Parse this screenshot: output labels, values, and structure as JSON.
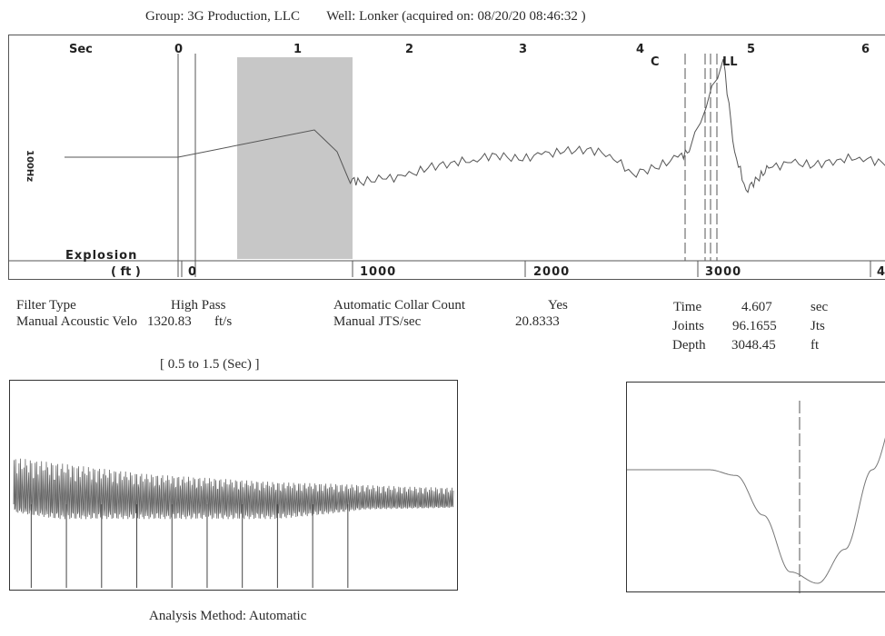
{
  "header": {
    "group_label": "Group:",
    "group_value": "3G Production, LLC",
    "well_label": "Well:",
    "well_value": "Lonker (acquired on: 08/20/20 08:46:32 )"
  },
  "main_plot": {
    "time_axis_label": "Sec",
    "time_ticks": [
      "0",
      "1",
      "2",
      "3",
      "4",
      "5",
      "6"
    ],
    "marker_labels": [
      "C",
      "LL"
    ],
    "left_label": "100Hz",
    "explosion_label": "Explosion",
    "depth_axis_label": "( ft )",
    "depth_ticks": [
      "0",
      "1000",
      "2000",
      "3000",
      "4"
    ]
  },
  "params": {
    "filter_type_label": "Filter Type",
    "filter_type_value": "High Pass",
    "velocity_label": "Manual Acoustic Velo",
    "velocity_value": "1320.83",
    "velocity_unit": "ft/s",
    "collar_count_label": "Automatic Collar Count",
    "collar_count_value": "Yes",
    "jts_label": "Manual JTS/sec",
    "jts_value": "20.8333"
  },
  "results": {
    "time_label": "Time",
    "time_value": "4.607",
    "time_unit": "sec",
    "joints_label": "Joints",
    "joints_value": "96.1655",
    "joints_unit": "Jts",
    "depth_label": "Depth",
    "depth_value": "3048.45",
    "depth_unit": "ft"
  },
  "window_label": "[ 0.5  to  1.5 (Sec) ]",
  "footer": {
    "method_label": "Analysis Method:",
    "method_value": "Automatic"
  },
  "colors": {
    "trace": "#555555",
    "shade": "#c8c8c8",
    "frame": "#333333"
  },
  "chart_data": [
    {
      "type": "line",
      "title": "",
      "xlabel": "Sec",
      "xlim": [
        -1.6,
        6.4
      ],
      "x_ticks": [
        0,
        1,
        2,
        3,
        4,
        5,
        6
      ],
      "secondary_axis": {
        "label": "( ft )",
        "ticks": [
          0,
          1000,
          2000,
          3000
        ]
      },
      "shaded_window": [
        0.5,
        1.5
      ],
      "markers": [
        {
          "label": "C",
          "x": 4.5
        },
        {
          "label": "LL",
          "x": 4.75
        }
      ],
      "grid": false,
      "series": [
        {
          "x": [
            -1.0,
            0.0,
            1.2,
            1.3,
            1.4,
            1.5,
            1.6,
            1.8,
            2.0,
            2.2,
            2.4,
            2.6,
            2.8,
            3.0,
            3.2,
            3.4,
            3.6,
            3.8,
            4.0,
            4.2,
            4.4,
            4.5,
            4.8,
            4.9,
            5.0,
            5.1,
            5.2,
            5.4,
            5.6,
            5.8,
            6.0,
            6.2,
            6.4
          ],
          "y": [
            0.0,
            0.0,
            0.5,
            0.3,
            0.1,
            -0.4,
            -0.45,
            -0.4,
            -0.35,
            -0.2,
            -0.1,
            -0.05,
            0.05,
            -0.05,
            0.05,
            0.1,
            0.15,
            0.05,
            -0.3,
            -0.2,
            0.0,
            0.1,
            1.8,
            0.1,
            -0.6,
            -0.4,
            -0.2,
            -0.1,
            -0.15,
            -0.05,
            0.0,
            -0.1,
            -0.05
          ]
        }
      ]
    },
    {
      "type": "line",
      "title": "[ 0.5  to  1.5 (Sec) ]",
      "xlim": [
        0.5,
        1.5
      ],
      "ylim": [
        -1.0,
        1.0
      ],
      "grid": false,
      "series": [
        {
          "x": [
            0.5,
            0.6,
            0.7,
            0.8,
            0.9,
            1.0,
            1.1,
            1.2,
            1.3,
            1.4,
            1.5
          ],
          "y_upper": [
            0.85,
            0.75,
            0.65,
            0.55,
            0.5,
            0.45,
            0.4,
            0.38,
            0.35,
            0.32,
            0.3
          ],
          "y_lower": [
            -0.45,
            -0.85,
            -0.85,
            -0.85,
            -0.85,
            -0.85,
            -0.85,
            -0.6,
            -0.3,
            -0.25,
            -0.2
          ]
        }
      ],
      "collar_spikes_x": [
        0.54,
        0.62,
        0.7,
        0.78,
        0.86,
        0.94,
        1.02,
        1.1,
        1.18,
        1.26
      ]
    },
    {
      "type": "line",
      "title": "",
      "marker_x": 4.607,
      "grid": false,
      "series": [
        {
          "x": [
            0,
            1,
            2,
            3,
            4,
            5,
            6,
            7,
            8,
            9,
            10
          ],
          "y": [
            0.0,
            0.0,
            0.0,
            0.0,
            -0.05,
            -0.4,
            -0.9,
            -1.0,
            -0.7,
            0.0,
            0.6
          ]
        }
      ]
    }
  ]
}
